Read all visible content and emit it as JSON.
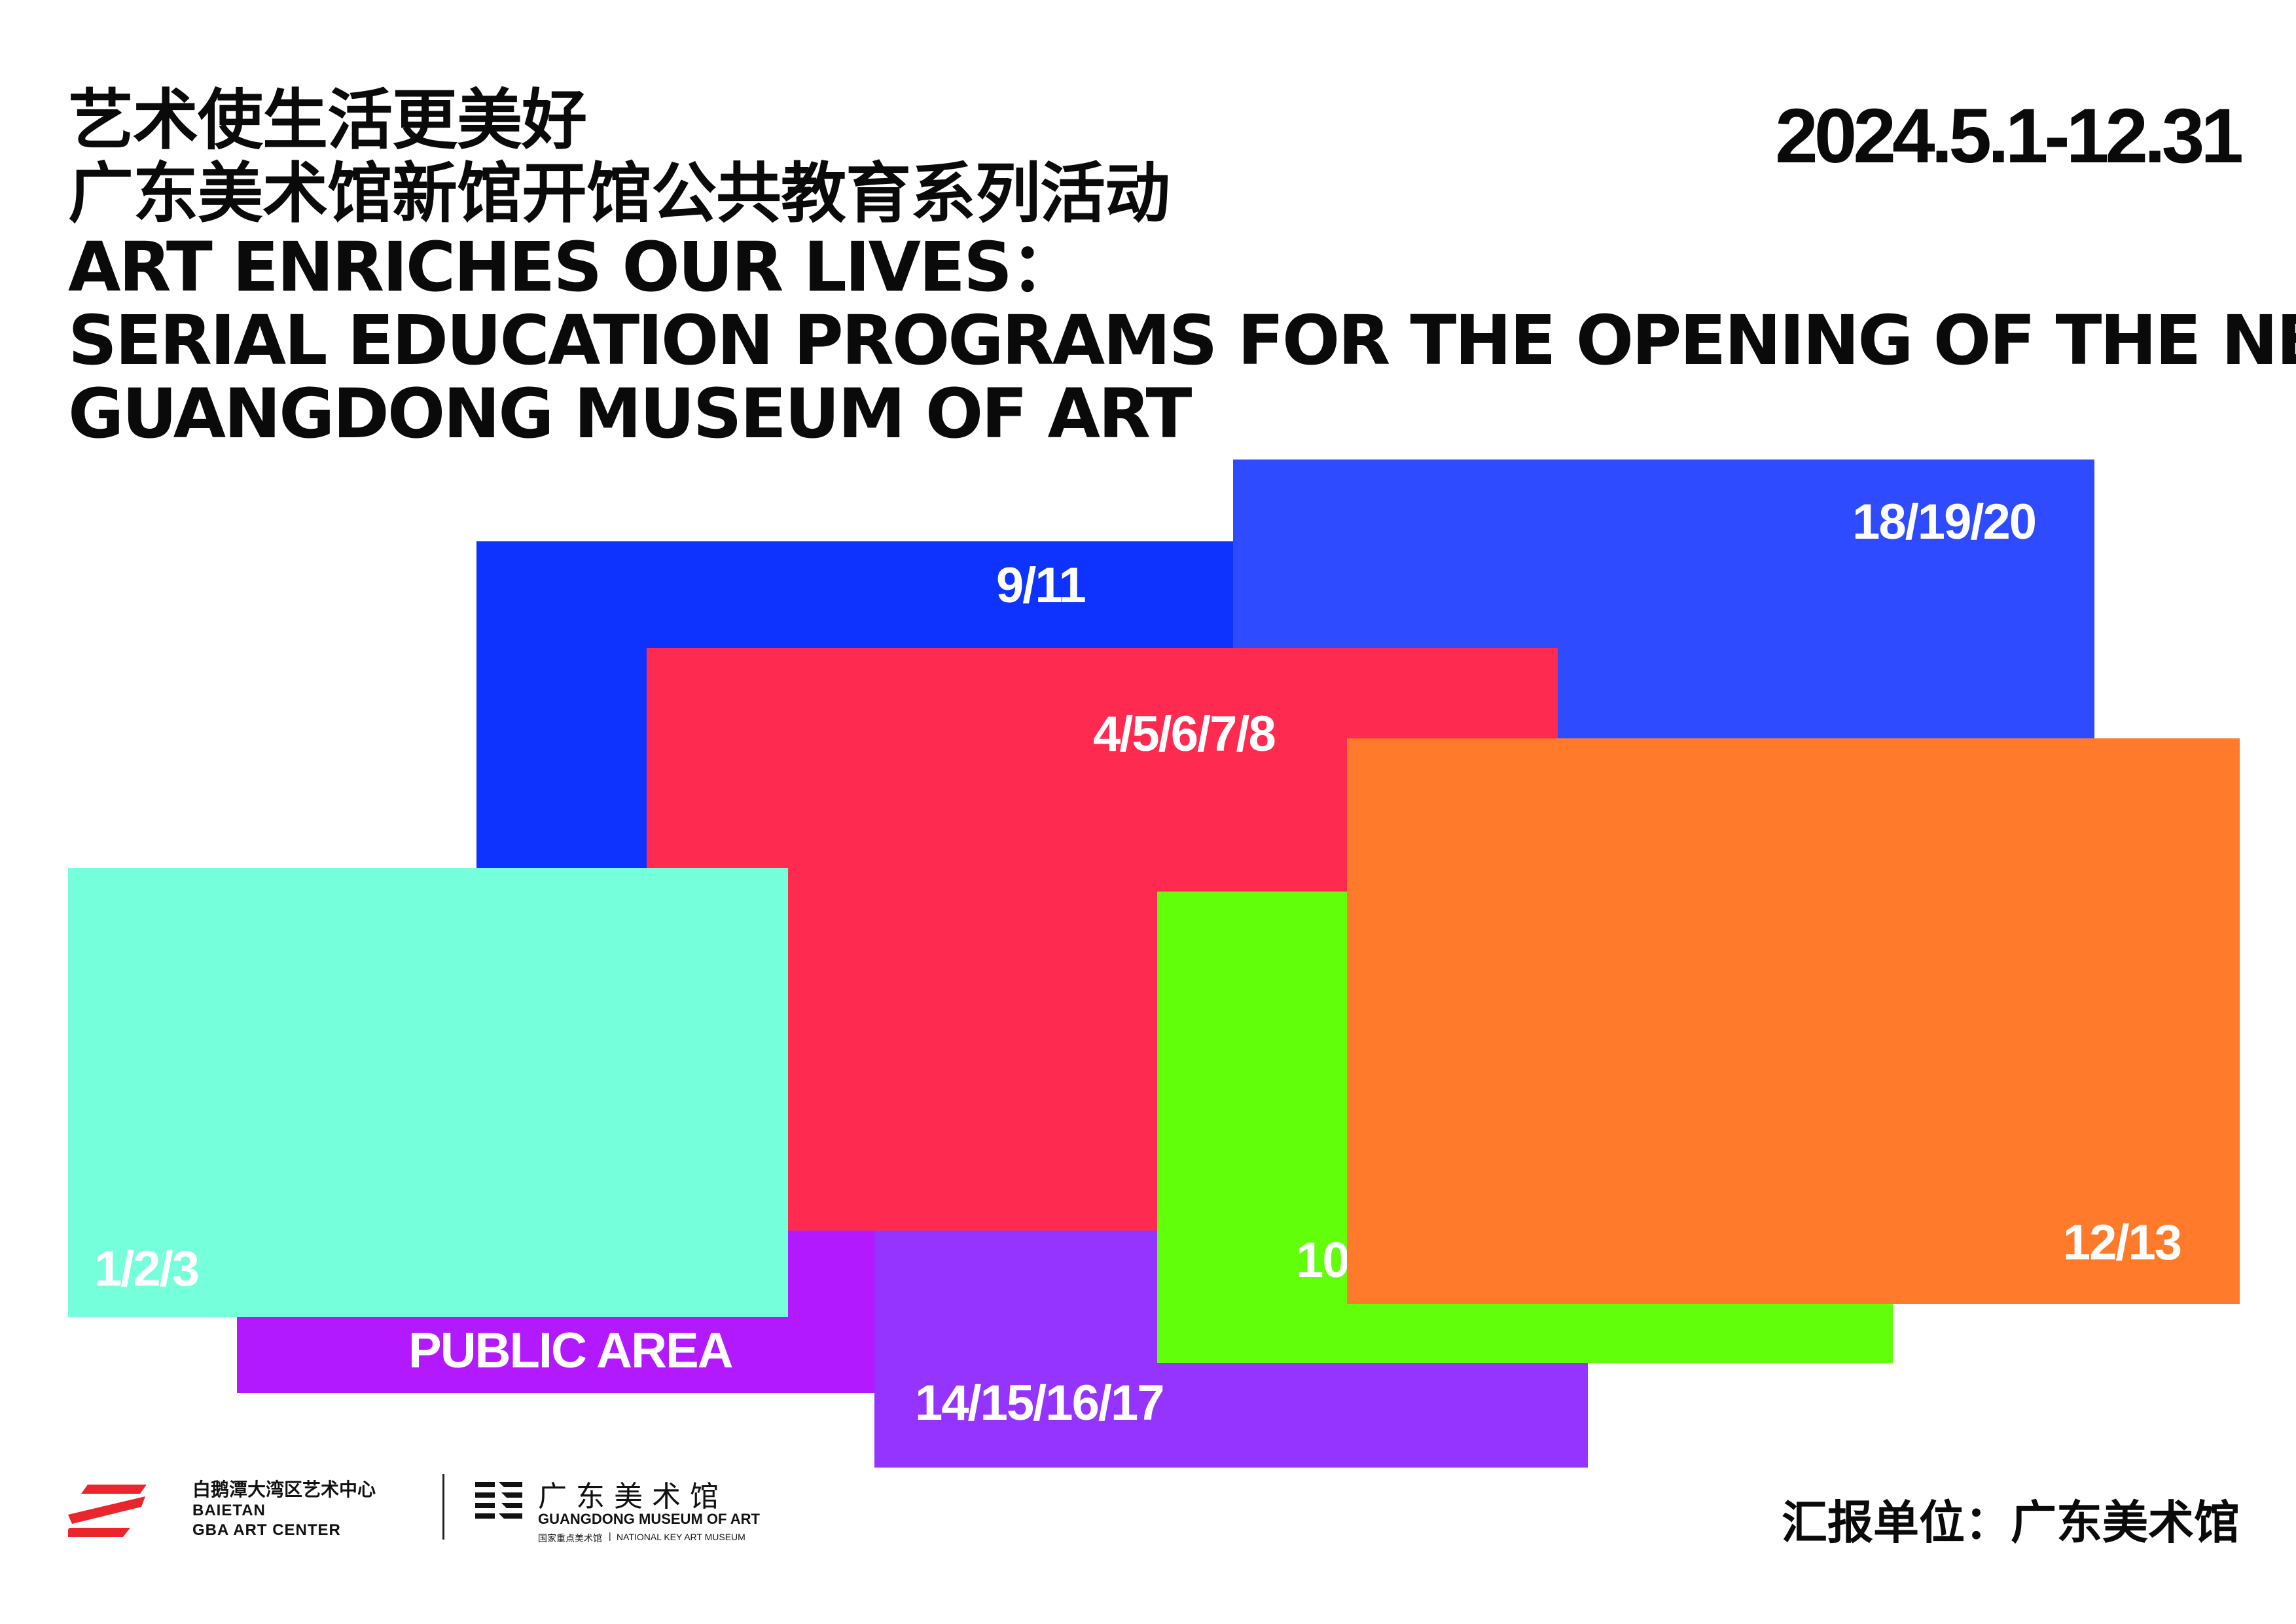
{
  "header": {
    "title_cn_1": "艺术使生活更美好",
    "title_cn_2": "广东美术馆新馆开馆公共教育系列活动",
    "title_en_1": "ART ENRICHES OUR LIVES：",
    "title_en_2": "SERIAL EDUCATION PROGRAMS FOR THE OPENING OF THE NEW",
    "title_en_3": "GUANGDONG MUSEUM OF ART",
    "date": "2024.5.1-12.31"
  },
  "blocks": [
    {
      "id": "royal-blue",
      "label": "9/11",
      "color": "#0f33ff"
    },
    {
      "id": "blue",
      "label": "18/19/20",
      "color": "#2f4bff"
    },
    {
      "id": "magenta",
      "label": "PUBLIC AREA",
      "color": "#b319ff"
    },
    {
      "id": "purple",
      "label": "14/15/16/17",
      "color": "#9533ff"
    },
    {
      "id": "red",
      "label": "4/5/6/7/8",
      "color": "#ff2a4f"
    },
    {
      "id": "green",
      "label": "10",
      "color": "#62ff0a"
    },
    {
      "id": "orange",
      "label": "12/13",
      "color": "#ff7a2a"
    },
    {
      "id": "mint",
      "label": "1/2/3",
      "color": "#76ffdb"
    }
  ],
  "footer": {
    "baietan_cn": "白鹅潭大湾区艺术中心",
    "baietan_en_1": "BAIETAN",
    "baietan_en_2": "GBA ART CENTER",
    "gdmoa_cn": "广东美术馆",
    "gdmoa_en": "GUANGDONG MUSEUM OF ART",
    "gdmoa_sub_cn": "国家重点美术馆",
    "gdmoa_sub_en": "NATIONAL KEY ART MUSEUM",
    "reporter": "汇报单位：广东美术馆",
    "baietan_logo_color": "#e8262b"
  }
}
